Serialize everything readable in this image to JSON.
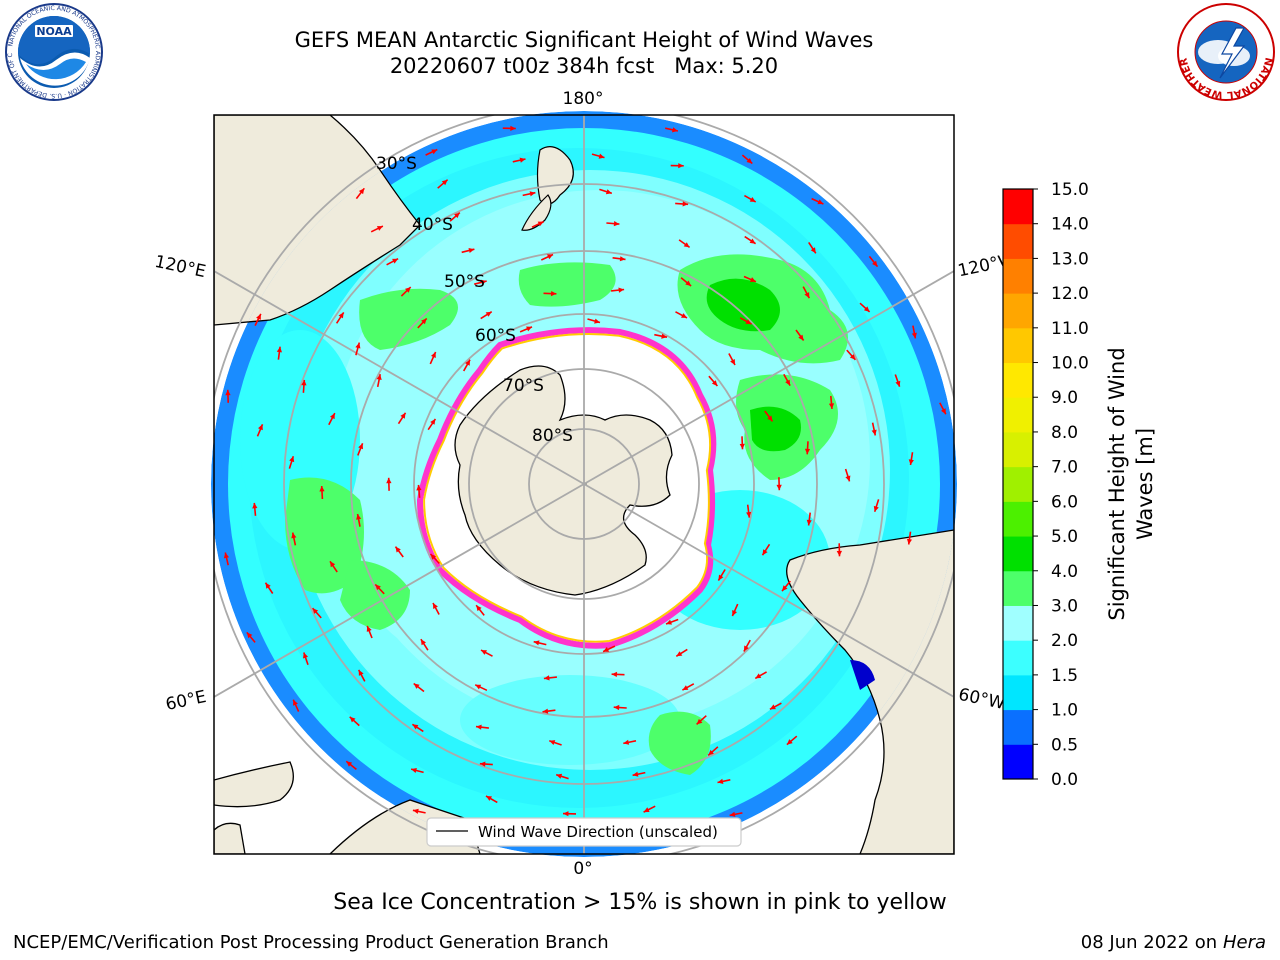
{
  "header": {
    "title_line1": "GEFS MEAN Antarctic Significant Height of Wind Waves",
    "title_line2": "20220607 t00z 384h fcst   Max: 5.20"
  },
  "logos": {
    "left": {
      "name": "NOAA",
      "ring_text": "NATIONAL OCEANIC AND ATMOSPHERIC ADMINISTRATION · U.S. DEPARTMENT OF COMMERCE"
    },
    "right": {
      "name": "NATIONAL WEATHER SERVICE"
    }
  },
  "map": {
    "projection": "south-polar-stereographic",
    "longitude_labels": [
      "180°",
      "120°E",
      "120°W",
      "60°E",
      "60°W",
      "0°"
    ],
    "latitude_labels": [
      "30°S",
      "40°S",
      "50°S",
      "60°S",
      "70°S",
      "80°S"
    ],
    "legend_label": "Wind Wave Direction (unscaled)",
    "arrow_color": "#ff0000",
    "land_color": "#efebdc",
    "ice_color": "#ffffff",
    "ice_edge_colors": [
      "#ff33cc",
      "#ffcc00"
    ],
    "ocean_colors": {
      "outer": "#1a8cff",
      "middle": "#33ffff",
      "central": "#99ffff",
      "patches": "#4dff6a"
    }
  },
  "colorbar": {
    "label": "Significant Height of Wind Waves [m]",
    "ticks": [
      "0.0",
      "0.5",
      "1.0",
      "1.5",
      "2.0",
      "3.0",
      "4.0",
      "5.0",
      "6.0",
      "7.0",
      "8.0",
      "9.0",
      "10.0",
      "11.0",
      "12.0",
      "13.0",
      "14.0",
      "15.0"
    ],
    "colors": [
      "#0000ff",
      "#0a70ff",
      "#00e6ff",
      "#3cffff",
      "#a0ffff",
      "#4dff6a",
      "#00e000",
      "#4cf000",
      "#a0f000",
      "#d8f000",
      "#f0f000",
      "#ffe800",
      "#ffc800",
      "#ffa600",
      "#ff8000",
      "#ff4c00",
      "#ff0000"
    ]
  },
  "footer": {
    "note": "Sea Ice Concentration > 15% is shown in pink to yellow",
    "org": "NCEP/EMC/Verification Post Processing Product Generation Branch",
    "date": "08 Jun 2022 on",
    "host": "Hera"
  }
}
